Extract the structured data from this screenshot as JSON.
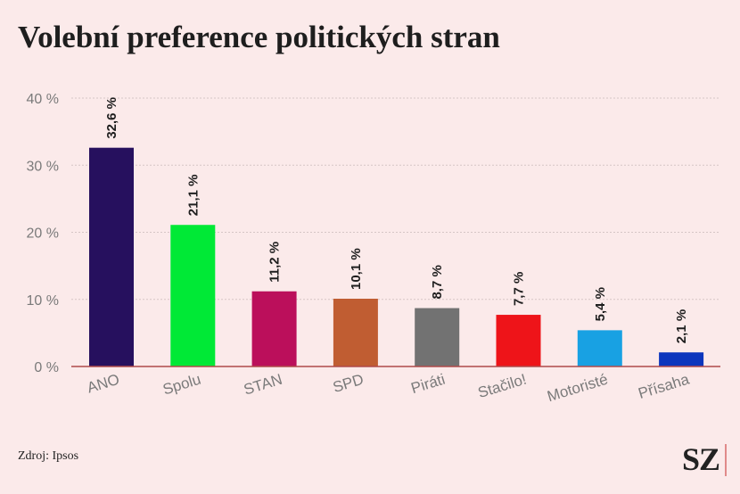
{
  "title": "Volební preference politických stran",
  "source": "Zdroj: Ipsos",
  "logo": "SZ",
  "chart_data": {
    "type": "bar",
    "title": "Volební preference politických stran",
    "xlabel": "",
    "ylabel": "",
    "ylim": [
      0,
      40
    ],
    "yticks": [
      0,
      10,
      20,
      30,
      40
    ],
    "ytick_labels": [
      "0 %",
      "10 %",
      "20 %",
      "30 %",
      "40 %"
    ],
    "grid": true,
    "categories": [
      "ANO",
      "Spolu",
      "STAN",
      "SPD",
      "Piráti",
      "Stačilo!",
      "Motoristé",
      "Přísaha"
    ],
    "values": [
      32.6,
      21.1,
      11.2,
      10.1,
      8.7,
      7.7,
      5.4,
      2.1
    ],
    "value_labels": [
      "32,6 %",
      "21,1 %",
      "11,2 %",
      "10,1 %",
      "8,7 %",
      "7,7 %",
      "5,4 %",
      "2,1 %"
    ],
    "colors": [
      "#26105e",
      "#00e936",
      "#bb0f5b",
      "#c05d32",
      "#727272",
      "#ee1419",
      "#18a1e3",
      "#0c36bd"
    ]
  }
}
